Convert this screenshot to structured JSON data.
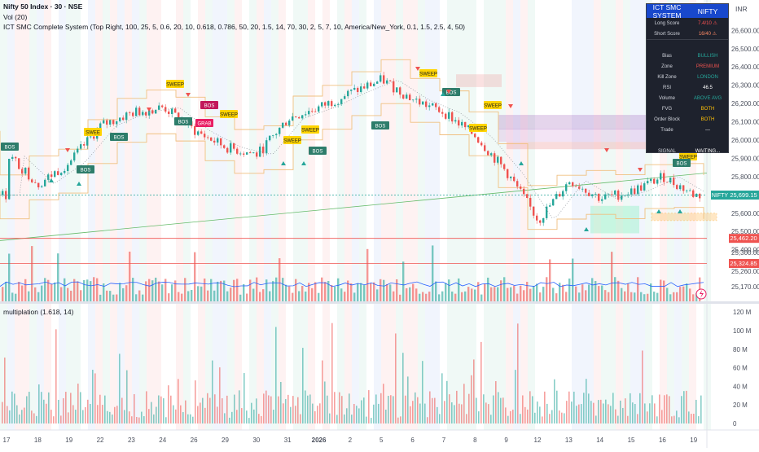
{
  "legend": {
    "symbol_line": "Nifty 50 Index · 30 · NSE",
    "vol_line": "Vol (20)",
    "ict_line": "ICT SMC Complete System (Top Right, 100, 25, 5, 0.6, 20, 10, 0.618, 0.786, 50, 20, 1.5, 14, 70, 30, 2, 5, 7, 10, America/New_York, 0.1, 1.5, 2.5, 4, 50)",
    "mult_line": "multiplation (1.618, 14)"
  },
  "currency": "INR",
  "smc_table": {
    "title": "ICT SMC SYSTEM",
    "symbol": "NIFTY",
    "rows": [
      {
        "k": "Long Score",
        "v": "7.4/10 ⚠",
        "color": "#ff5252"
      },
      {
        "k": "Short Score",
        "v": "16/40 ⚠",
        "color": "#ff8a65"
      },
      {
        "k": "",
        "v": "",
        "color": "#ffffff"
      },
      {
        "k": "Bias",
        "v": "BULLISH",
        "color": "#26a69a"
      },
      {
        "k": "Zone",
        "v": "PREMIUM",
        "color": "#ef5350"
      },
      {
        "k": "Kill Zone",
        "v": "LONDON",
        "color": "#26a69a"
      },
      {
        "k": "RSI",
        "v": "46.5",
        "color": "#ffffff"
      },
      {
        "k": "Volume",
        "v": "ABOVE AVG",
        "color": "#26a69a"
      },
      {
        "k": "FVG",
        "v": "BOTH",
        "color": "#ffc107"
      },
      {
        "k": "Order Block",
        "v": "BOTH",
        "color": "#ffc107"
      },
      {
        "k": "Trade",
        "v": "---",
        "color": "#ffffff"
      },
      {
        "k": "",
        "v": "",
        "color": "#ffffff"
      },
      {
        "k": "SIGNAL",
        "v": "WAITING...",
        "color": "#ffffff"
      }
    ]
  },
  "price_tags": [
    {
      "label": "NIFTY",
      "value": "25,699.15",
      "color": "#26a69a"
    },
    {
      "label": "",
      "value": "25,462.20",
      "color": "#ef5350"
    },
    {
      "label": "",
      "value": "25,324.85",
      "color": "#ef5350"
    }
  ],
  "markers": {
    "sweep": "SWEEP",
    "sweep_short": "SWEE",
    "grab": "GRAB",
    "bos": "BOS"
  },
  "chart_data": [
    {
      "type": "candlestick",
      "name": "Nifty 50 Index · 30 · NSE",
      "y_axis_ticks": [
        "26,600.00",
        "26,500.00",
        "26,400.00",
        "26,300.00",
        "26,200.00",
        "26,100.00",
        "26,000.00",
        "25,900.00",
        "25,800.00",
        "25,700.00",
        "25,600.00",
        "25,500.00",
        "25,400.00",
        "25,300.00",
        "25,260.00",
        "25,170.00"
      ],
      "x_axis_ticks": [
        "17",
        "18",
        "19",
        "22",
        "23",
        "24",
        "26",
        "29",
        "30",
        "31",
        "2026",
        "2",
        "5",
        "6",
        "7",
        "8",
        "9",
        "12",
        "13",
        "14",
        "15",
        "16",
        "19"
      ],
      "close_path": [
        {
          "x": "17",
          "y": 25920
        },
        {
          "x": "18",
          "y": 25760
        },
        {
          "x": "19",
          "y": 25880
        },
        {
          "x": "22",
          "y": 26080
        },
        {
          "x": "23",
          "y": 26150
        },
        {
          "x": "24",
          "y": 26180
        },
        {
          "x": "26",
          "y": 26050
        },
        {
          "x": "29",
          "y": 25960
        },
        {
          "x": "30",
          "y": 25920
        },
        {
          "x": "31",
          "y": 26120
        },
        {
          "x": "2026",
          "y": 26180
        },
        {
          "x": "2",
          "y": 26260
        },
        {
          "x": "5",
          "y": 26330
        },
        {
          "x": "6",
          "y": 26220
        },
        {
          "x": "7",
          "y": 26150
        },
        {
          "x": "8",
          "y": 26020
        },
        {
          "x": "9",
          "y": 25820
        },
        {
          "x": "12",
          "y": 25560
        },
        {
          "x": "13",
          "y": 25780
        },
        {
          "x": "14",
          "y": 25680
        },
        {
          "x": "15",
          "y": 25720
        },
        {
          "x": "16",
          "y": 25800
        },
        {
          "x": "19",
          "y": 25699
        }
      ],
      "levels": [
        25699.15,
        25462.2,
        25324.85
      ]
    },
    {
      "type": "bar",
      "name": "multiplation (1.618, 14)",
      "y_axis_ticks": [
        "120 M",
        "100 M",
        "80 M",
        "60 M",
        "40 M",
        "20 M",
        "0"
      ],
      "ylim": [
        0,
        120
      ]
    }
  ]
}
